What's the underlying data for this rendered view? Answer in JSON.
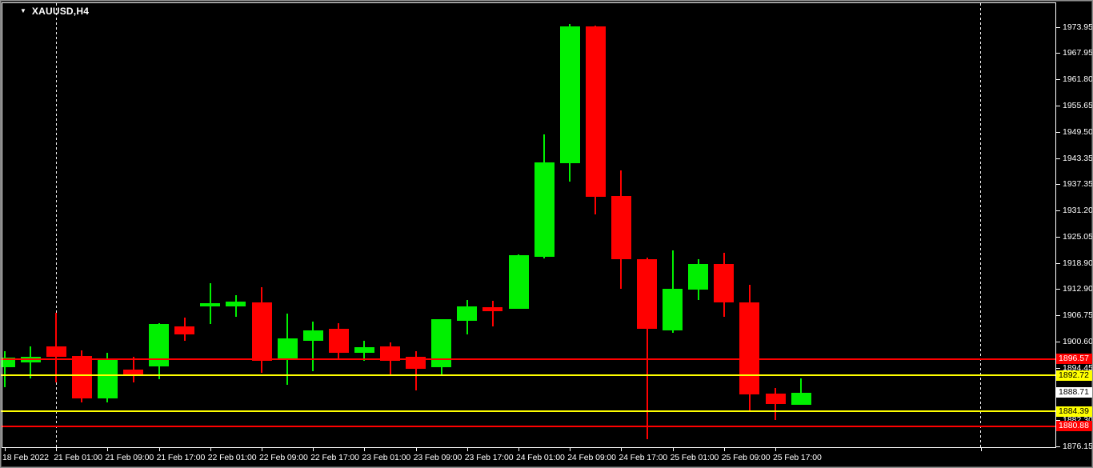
{
  "header": {
    "symbol_label": "XAUUSD,H4",
    "dropdown_icon": "▼"
  },
  "chart_data": {
    "type": "candlestick",
    "symbol": "XAUUSD",
    "timeframe": "H4",
    "title": "XAUUSD,H4",
    "colors": {
      "background": "#000000",
      "bull": "#00F000",
      "bear": "#FF0000",
      "axis_text": "#FFFFFF",
      "frame": "#FFFFFF",
      "separator": "#EFEFEF",
      "red_level_line": "#FF0000",
      "yellow_level_line": "#FFFF00"
    },
    "price_axis": {
      "min": 1876.15,
      "max": 1973.95,
      "ticks": [
        1973.95,
        1967.95,
        1961.8,
        1955.65,
        1949.5,
        1943.35,
        1937.35,
        1931.2,
        1925.05,
        1918.9,
        1912.9,
        1906.75,
        1900.6,
        1894.45,
        1888.3,
        1882.3,
        1876.15
      ],
      "markers": [
        {
          "value": 1896.57,
          "bg": "#FF0000",
          "fg": "#FFFFFF",
          "kind": "level-label"
        },
        {
          "value": 1892.72,
          "bg": "#FFFF00",
          "fg": "#000000",
          "kind": "level-label"
        },
        {
          "value": 1888.71,
          "bg": "#FFFFFF",
          "fg": "#000000",
          "kind": "current-price"
        },
        {
          "value": 1884.39,
          "bg": "#FFFF00",
          "fg": "#000000",
          "kind": "level-label"
        },
        {
          "value": 1880.88,
          "bg": "#FF0000",
          "fg": "#FFFFFF",
          "kind": "level-label"
        }
      ]
    },
    "time_axis": {
      "labels": [
        {
          "text": "18 Feb 2022",
          "candle_index": 0
        },
        {
          "text": "21 Feb 01:00",
          "candle_index": 2
        },
        {
          "text": "21 Feb 09:00",
          "candle_index": 4
        },
        {
          "text": "21 Feb 17:00",
          "candle_index": 6
        },
        {
          "text": "22 Feb 01:00",
          "candle_index": 8
        },
        {
          "text": "22 Feb 09:00",
          "candle_index": 10
        },
        {
          "text": "22 Feb 17:00",
          "candle_index": 12
        },
        {
          "text": "23 Feb 01:00",
          "candle_index": 14
        },
        {
          "text": "23 Feb 09:00",
          "candle_index": 16
        },
        {
          "text": "23 Feb 17:00",
          "candle_index": 18
        },
        {
          "text": "24 Feb 01:00",
          "candle_index": 20
        },
        {
          "text": "24 Feb 09:00",
          "candle_index": 22
        },
        {
          "text": "24 Feb 17:00",
          "candle_index": 24
        },
        {
          "text": "25 Feb 01:00",
          "candle_index": 26
        },
        {
          "text": "25 Feb 09:00",
          "candle_index": 28
        },
        {
          "text": "25 Feb 17:00",
          "candle_index": 30
        }
      ],
      "unlabeled_tick_indices": [
        38
      ]
    },
    "hlines": [
      {
        "price": 1896.57,
        "color": "#FF0000"
      },
      {
        "price": 1892.72,
        "color": "#FFFF00"
      },
      {
        "price": 1884.39,
        "color": "#FFFF00"
      },
      {
        "price": 1880.88,
        "color": "#FF0000"
      }
    ],
    "separators": {
      "candle_indices": [
        2,
        38
      ]
    },
    "candles": [
      {
        "t": "18 Feb 17:00",
        "o": 1894.7,
        "h": 1898.4,
        "l": 1890.0,
        "c": 1896.9
      },
      {
        "t": "18 Feb 21:00",
        "o": 1895.8,
        "h": 1899.6,
        "l": 1892.1,
        "c": 1897.0
      },
      {
        "t": "21 Feb 01:00",
        "o": 1899.6,
        "h": 1907.3,
        "l": 1891.1,
        "c": 1897.0
      },
      {
        "t": "21 Feb 05:00",
        "o": 1897.2,
        "h": 1898.6,
        "l": 1886.5,
        "c": 1887.4
      },
      {
        "t": "21 Feb 09:00",
        "o": 1887.4,
        "h": 1898.0,
        "l": 1886.5,
        "c": 1896.3
      },
      {
        "t": "21 Feb 13:00",
        "o": 1894.1,
        "h": 1897.1,
        "l": 1891.1,
        "c": 1892.8
      },
      {
        "t": "21 Feb 17:00",
        "o": 1894.8,
        "h": 1904.9,
        "l": 1891.8,
        "c": 1904.7
      },
      {
        "t": "21 Feb 21:00",
        "o": 1904.2,
        "h": 1906.3,
        "l": 1900.8,
        "c": 1902.4
      },
      {
        "t": "22 Feb 01:00",
        "o": 1908.8,
        "h": 1914.2,
        "l": 1904.7,
        "c": 1909.6
      },
      {
        "t": "22 Feb 05:00",
        "o": 1908.9,
        "h": 1911.4,
        "l": 1906.4,
        "c": 1910.0
      },
      {
        "t": "22 Feb 09:00",
        "o": 1909.8,
        "h": 1913.3,
        "l": 1893.4,
        "c": 1896.2
      },
      {
        "t": "22 Feb 13:00",
        "o": 1896.3,
        "h": 1907.2,
        "l": 1890.6,
        "c": 1901.3
      },
      {
        "t": "22 Feb 17:00",
        "o": 1900.8,
        "h": 1905.3,
        "l": 1893.7,
        "c": 1903.3
      },
      {
        "t": "22 Feb 21:00",
        "o": 1903.6,
        "h": 1904.9,
        "l": 1896.5,
        "c": 1898.0
      },
      {
        "t": "23 Feb 01:00",
        "o": 1898.0,
        "h": 1900.8,
        "l": 1896.2,
        "c": 1899.3
      },
      {
        "t": "23 Feb 05:00",
        "o": 1899.6,
        "h": 1900.4,
        "l": 1892.7,
        "c": 1896.2
      },
      {
        "t": "23 Feb 09:00",
        "o": 1897.1,
        "h": 1898.3,
        "l": 1889.3,
        "c": 1894.3
      },
      {
        "t": "23 Feb 13:00",
        "o": 1894.6,
        "h": 1905.9,
        "l": 1892.7,
        "c": 1905.8
      },
      {
        "t": "23 Feb 17:00",
        "o": 1905.5,
        "h": 1910.4,
        "l": 1902.4,
        "c": 1908.9
      },
      {
        "t": "23 Feb 21:00",
        "o": 1908.6,
        "h": 1910.1,
        "l": 1904.2,
        "c": 1907.7
      },
      {
        "t": "24 Feb 01:00",
        "o": 1908.3,
        "h": 1921.0,
        "l": 1908.2,
        "c": 1920.8
      },
      {
        "t": "24 Feb 05:00",
        "o": 1920.4,
        "h": 1949.0,
        "l": 1920.0,
        "c": 1942.5
      },
      {
        "t": "24 Feb 09:00",
        "o": 1942.3,
        "h": 1974.7,
        "l": 1937.9,
        "c": 1974.1
      },
      {
        "t": "24 Feb 13:00",
        "o": 1974.2,
        "h": 1974.3,
        "l": 1930.3,
        "c": 1934.4
      },
      {
        "t": "24 Feb 17:00",
        "o": 1934.5,
        "h": 1940.6,
        "l": 1912.9,
        "c": 1919.8
      },
      {
        "t": "24 Feb 21:00",
        "o": 1919.9,
        "h": 1920.2,
        "l": 1877.9,
        "c": 1903.6
      },
      {
        "t": "25 Feb 01:00",
        "o": 1903.3,
        "h": 1921.9,
        "l": 1902.7,
        "c": 1912.9
      },
      {
        "t": "25 Feb 05:00",
        "o": 1912.8,
        "h": 1919.9,
        "l": 1910.3,
        "c": 1918.8
      },
      {
        "t": "25 Feb 09:00",
        "o": 1918.8,
        "h": 1921.3,
        "l": 1906.4,
        "c": 1909.8
      },
      {
        "t": "25 Feb 13:00",
        "o": 1909.7,
        "h": 1913.9,
        "l": 1884.3,
        "c": 1888.4
      },
      {
        "t": "25 Feb 17:00",
        "o": 1888.5,
        "h": 1889.9,
        "l": 1882.3,
        "c": 1886.1
      },
      {
        "t": "25 Feb 21:00",
        "o": 1885.9,
        "h": 1892.1,
        "l": 1885.8,
        "c": 1888.71
      }
    ]
  }
}
